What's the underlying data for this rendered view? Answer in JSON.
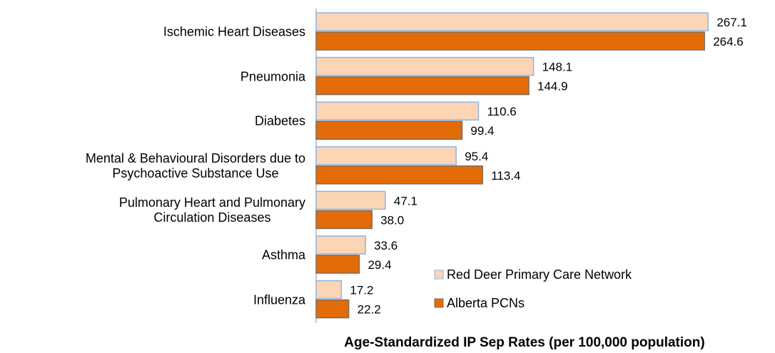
{
  "chart_data": {
    "type": "barh",
    "xlabel": "Age-Standardized IP Sep Rates (per 100,000 population)",
    "categories": [
      "Ischemic Heart Diseases",
      "Pneumonia",
      "Diabetes",
      "Mental & Behavioural Disorders due to\nPsychoactive Substance Use",
      "Pulmonary Heart and Pulmonary\nCirculation Diseases",
      "Asthma",
      "Influenza"
    ],
    "series": [
      {
        "name": "Red Deer Primary Care Network",
        "color": "#fcd5b5",
        "edge": "#8eb4e3",
        "values": [
          267.1,
          148.1,
          110.6,
          95.4,
          47.1,
          33.6,
          17.2
        ],
        "value_labels": [
          "267.1",
          "148.1",
          "110.6",
          "95.4",
          "47.1",
          "33.6",
          "17.2"
        ]
      },
      {
        "name": "Alberta PCNs",
        "color": "#e36c09",
        "edge": "#7f6a5a",
        "values": [
          264.6,
          144.9,
          99.4,
          113.4,
          38.0,
          29.4,
          22.2
        ],
        "value_labels": [
          "264.6",
          "144.9",
          "99.4",
          "113.4",
          "38.0",
          "29.4",
          "22.2"
        ]
      }
    ],
    "xlim": [
      0,
      300
    ]
  }
}
